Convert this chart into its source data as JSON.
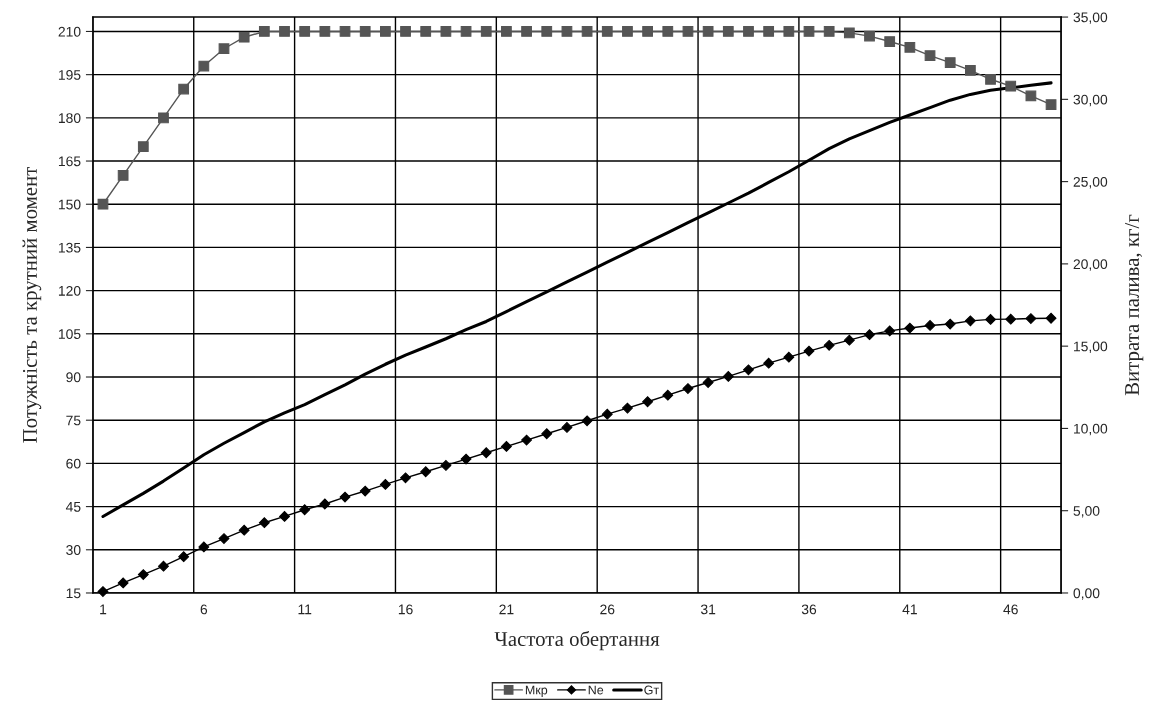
{
  "chart_data": {
    "type": "line",
    "xlabel": "Частота обертання",
    "ylabel": "Потужність та крутний момент",
    "y2label": "Витрата палива, кг/г",
    "categories": [
      "1",
      null,
      null,
      null,
      null,
      "6",
      null,
      null,
      null,
      null,
      "11",
      null,
      null,
      null,
      null,
      "16",
      null,
      null,
      null,
      null,
      "21",
      null,
      null,
      null,
      null,
      "26",
      null,
      null,
      null,
      null,
      "31",
      null,
      null,
      null,
      null,
      "36",
      null,
      null,
      null,
      null,
      "41",
      null,
      null,
      null,
      null,
      "46",
      null,
      null
    ],
    "series": [
      {
        "name": "Мкр",
        "color": "#555555",
        "marker": "square",
        "values": [
          150,
          160,
          170,
          180,
          190,
          198,
          204,
          208,
          210,
          210,
          210,
          210,
          210,
          210,
          210,
          210,
          210,
          210,
          210,
          210,
          210,
          210,
          210,
          210,
          210,
          210,
          210,
          210,
          210,
          210,
          210,
          210,
          210,
          210,
          210,
          210,
          210,
          209.5,
          208.4,
          206.5,
          204.5,
          201.6,
          199.2,
          196.5,
          193.4,
          191,
          187.6,
          184.6
        ]
      },
      {
        "name": "Ne",
        "color": "#000000",
        "marker": "diamond",
        "values": [
          15.5,
          18.5,
          21.4,
          24.3,
          27.6,
          31,
          33.9,
          36.8,
          39.4,
          41.6,
          43.9,
          45.9,
          48.3,
          50.4,
          52.7,
          55,
          57.1,
          59.3,
          61.5,
          63.7,
          65.9,
          68.1,
          70.3,
          72.5,
          74.8,
          77.1,
          79.2,
          81.4,
          83.7,
          86,
          88.1,
          90.2,
          92.5,
          94.8,
          96.9,
          99,
          101,
          102.8,
          104.7,
          106,
          107,
          107.9,
          108.4,
          109.5,
          110,
          110.1,
          110.3,
          110.4
        ]
      },
      {
        "name": "Gт",
        "color": "#000000",
        "marker": "none",
        "axis": "y2",
        "values": [
          4.65,
          5.35,
          6.05,
          6.8,
          7.6,
          8.4,
          9.1,
          9.75,
          10.4,
          10.95,
          11.45,
          12.05,
          12.65,
          13.3,
          13.9,
          14.45,
          14.95,
          15.45,
          16.0,
          16.5,
          17.1,
          17.7,
          18.3,
          18.9,
          19.5,
          20.1,
          20.7,
          21.3,
          21.9,
          22.5,
          23.1,
          23.7,
          24.3,
          24.95,
          25.6,
          26.3,
          27.0,
          27.6,
          28.1,
          28.6,
          29.05,
          29.5,
          29.95,
          30.3,
          30.55,
          30.7,
          30.85,
          31.0
        ]
      }
    ],
    "ylim": [
      15,
      215
    ],
    "yticks": [
      15,
      30,
      45,
      60,
      75,
      90,
      105,
      120,
      135,
      150,
      165,
      180,
      195,
      210
    ],
    "y2lim": [
      0,
      35
    ],
    "y2ticks": [
      {
        "value": 0,
        "label": "0,00"
      },
      {
        "value": 5,
        "label": "5,00"
      },
      {
        "value": 10,
        "label": "10,00"
      },
      {
        "value": 15,
        "label": "15,00"
      },
      {
        "value": 20,
        "label": "20,00"
      },
      {
        "value": 25,
        "label": "25,00"
      },
      {
        "value": 30,
        "label": "30,00"
      },
      {
        "value": 35,
        "label": "35,00"
      }
    ],
    "grid": true,
    "legend": "bottom",
    "line_style": "solid"
  }
}
